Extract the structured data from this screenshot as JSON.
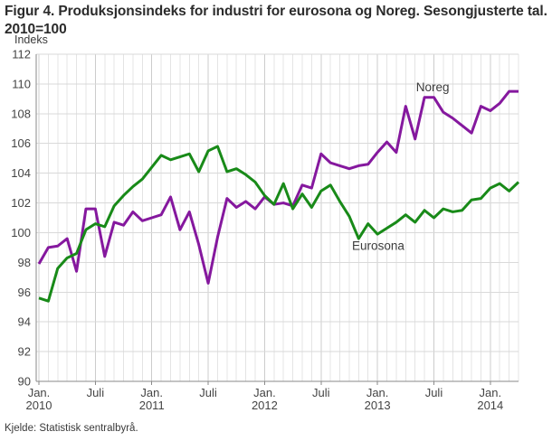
{
  "figure": {
    "title": "Figur 4. Produksjonsindeks for industri for eurosona og Noreg. Sesongjusterte tal. 2010=100",
    "y_axis_unit": "Indeks",
    "source": "Kjelde: Statistisk sentralbyrå."
  },
  "chart_data": {
    "type": "line",
    "title": "Figur 4. Produksjonsindeks for industri for eurosona og Noreg. Sesongjusterte tal. 2010=100",
    "xlabel": "",
    "ylabel": "Indeks",
    "ylim": [
      90,
      112
    ],
    "y_ticks": [
      90,
      92,
      94,
      96,
      98,
      100,
      102,
      104,
      106,
      108,
      110,
      112
    ],
    "grid": true,
    "legend_position": "inline-annotations",
    "x_range": {
      "start": "2010-01",
      "end": "2014-04",
      "frequency": "monthly",
      "n_points": 52
    },
    "x_ticks": [
      {
        "month_index": 0,
        "lines": [
          "Jan.",
          "2010"
        ]
      },
      {
        "month_index": 6,
        "lines": [
          "Juli"
        ]
      },
      {
        "month_index": 12,
        "lines": [
          "Jan.",
          "2011"
        ]
      },
      {
        "month_index": 18,
        "lines": [
          "Juli"
        ]
      },
      {
        "month_index": 24,
        "lines": [
          "Jan.",
          "2012"
        ]
      },
      {
        "month_index": 30,
        "lines": [
          "Juli"
        ]
      },
      {
        "month_index": 36,
        "lines": [
          "Jan.",
          "2013"
        ]
      },
      {
        "month_index": 42,
        "lines": [
          "Juli"
        ]
      },
      {
        "month_index": 48,
        "lines": [
          "Jan.",
          "2014"
        ]
      }
    ],
    "series": [
      {
        "name": "Noreg",
        "color": "#85189e",
        "values": [
          97.9,
          99.0,
          99.1,
          99.6,
          97.4,
          101.6,
          101.6,
          98.4,
          100.7,
          100.5,
          101.4,
          100.8,
          101.0,
          101.2,
          102.4,
          100.2,
          101.4,
          99.2,
          96.6,
          99.7,
          102.3,
          101.7,
          102.1,
          101.6,
          102.4,
          101.9,
          102.0,
          101.8,
          103.2,
          103.0,
          105.3,
          104.7,
          104.5,
          104.3,
          104.5,
          104.6,
          105.4,
          106.1,
          105.4,
          108.5,
          106.3,
          109.1,
          109.1,
          108.1,
          107.7,
          107.2,
          106.7,
          108.5,
          108.2,
          108.7,
          109.5,
          109.5
        ]
      },
      {
        "name": "Eurosona",
        "color": "#188a18",
        "values": [
          95.6,
          95.4,
          97.6,
          98.3,
          98.6,
          100.2,
          100.6,
          100.4,
          101.8,
          102.5,
          103.1,
          103.6,
          104.4,
          105.2,
          104.9,
          105.1,
          105.3,
          104.1,
          105.5,
          105.8,
          104.1,
          104.3,
          103.9,
          103.4,
          102.5,
          101.9,
          103.3,
          101.6,
          102.6,
          101.7,
          102.8,
          103.2,
          102.1,
          101.1,
          99.6,
          100.6,
          99.9,
          100.3,
          100.7,
          101.2,
          100.7,
          101.5,
          101.0,
          101.6,
          101.4,
          101.5,
          102.2,
          102.3,
          103.0,
          103.3,
          102.8,
          103.4
        ]
      }
    ],
    "annotations": [
      {
        "text": "Noreg",
        "series": "Noreg",
        "month_index": 40.1,
        "value": 109.5
      },
      {
        "text": "Eurosona",
        "series": "Eurosona",
        "month_index": 33.3,
        "value": 98.85
      }
    ],
    "style": {
      "line_width": 3,
      "grid_minor_color": "#e4e4e4",
      "grid_major_color": "#cccccc",
      "grid_horizontal_color": "#d9d9d9",
      "axis_color": "#8a8a8a",
      "tick_label_color": "#444444",
      "annotation_color": "#3c3c3c",
      "background": "#ffffff"
    }
  }
}
